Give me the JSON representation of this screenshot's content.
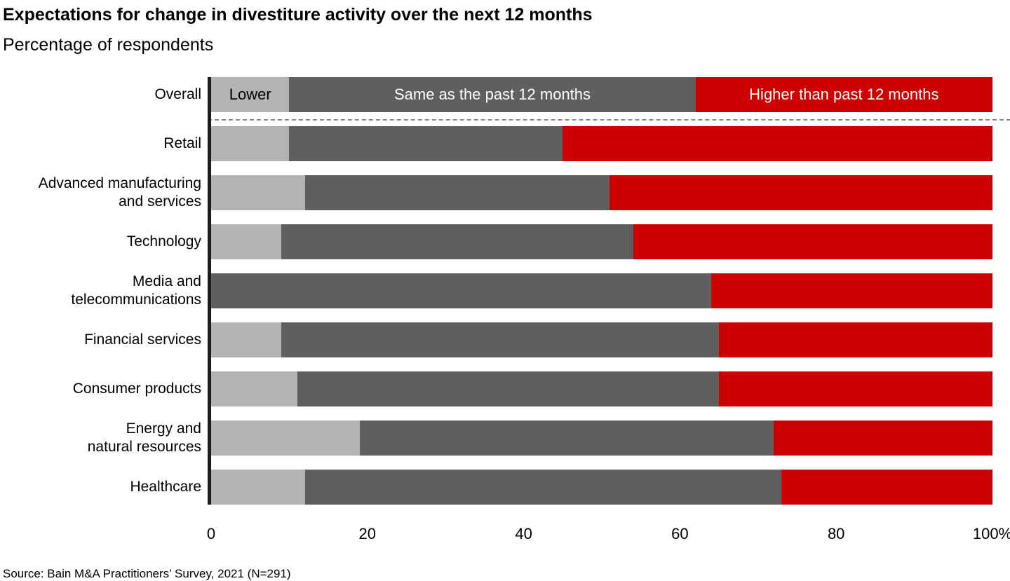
{
  "header": {
    "title": "Expectations for change in divestiture activity over the next 12 months",
    "subtitle": "Percentage of respondents"
  },
  "source": "Source: Bain M&A Practitioners’ Survey, 2021 (N=291)",
  "chart_data": {
    "type": "bar",
    "stacked": true,
    "orientation": "horizontal",
    "unit": "%",
    "xlim": [
      0,
      100
    ],
    "grid": false,
    "legend_position": "inside-first-bar",
    "series_names": [
      "Lower",
      "Same as the past 12 months",
      "Higher than past 12 months"
    ],
    "series_keys": [
      "lower",
      "same",
      "higher"
    ],
    "series_colors": [
      "#b3b3b3",
      "#5f5f5f",
      "#cc0000"
    ],
    "categories": [
      "Overall",
      "Retail",
      "Advanced manufacturing and services",
      "Technology",
      "Media and telecommunications",
      "Financial services",
      "Consumer products",
      "Energy and natural resources",
      "Healthcare"
    ],
    "rows": [
      {
        "category": "Overall",
        "values": [
          10,
          52,
          38
        ],
        "show_segment_labels": true,
        "separator_after": true
      },
      {
        "category": "Retail",
        "values": [
          10,
          35,
          55
        ]
      },
      {
        "category": "Advanced manufacturing\nand services",
        "values": [
          12,
          39,
          49
        ]
      },
      {
        "category": "Technology",
        "values": [
          9,
          45,
          46
        ]
      },
      {
        "category": "Media and\ntelecommunications",
        "values": [
          0,
          64,
          36
        ]
      },
      {
        "category": "Financial services",
        "values": [
          9,
          56,
          35
        ]
      },
      {
        "category": "Consumer products",
        "values": [
          11,
          54,
          35
        ]
      },
      {
        "category": "Energy and\nnatural resources",
        "values": [
          19,
          53,
          28
        ]
      },
      {
        "category": "Healthcare",
        "values": [
          12,
          61,
          27
        ]
      }
    ],
    "x_ticks": [
      "0",
      "20",
      "40",
      "60",
      "80",
      "100%"
    ],
    "x_tick_values": [
      0,
      20,
      40,
      60,
      80,
      100
    ]
  }
}
